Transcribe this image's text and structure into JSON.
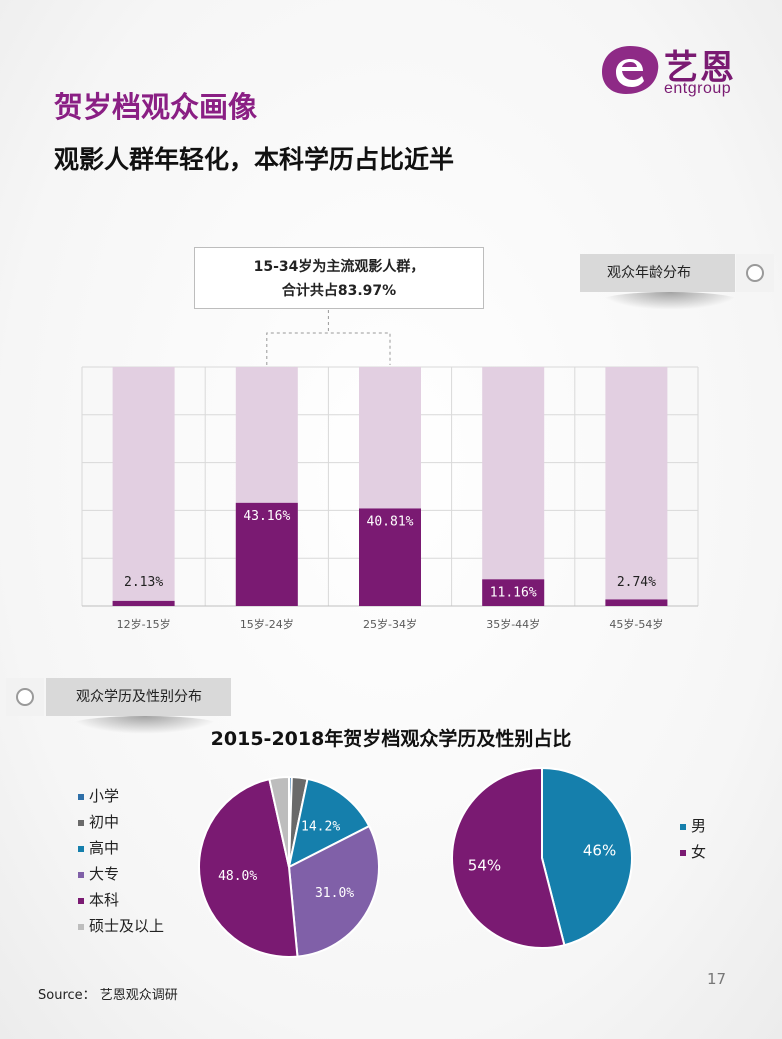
{
  "header": {
    "logo_cn": "艺恩",
    "logo_en": "entgroup",
    "title": "贺岁档观众画像",
    "subtitle": "观影人群年轻化，本科学历占比近半"
  },
  "callout": {
    "line1": "15-34岁为主流观影人群，",
    "line2": "合计共占83.97%"
  },
  "sections": {
    "age_tab": "观众年龄分布",
    "edu_tab": "观众学历及性别分布"
  },
  "colors": {
    "accent": "#8a1f84",
    "bar": "#7a1a72",
    "bar_bg": "#e2cfe1",
    "male": "#157fac"
  },
  "chart_data": [
    {
      "type": "bar",
      "categories": [
        "12岁-15岁",
        "15岁-24岁",
        "25岁-34岁",
        "35岁-44岁",
        "45岁-54岁"
      ],
      "values": [
        2.13,
        43.16,
        40.81,
        11.16,
        2.74
      ],
      "labels": [
        "2.13%",
        "43.16%",
        "40.81%",
        "11.16%",
        "2.74%"
      ],
      "ylim": [
        0,
        100
      ],
      "grid": true
    },
    {
      "type": "pie",
      "title": "2015-2018年贺岁档观众学历及性别占比",
      "categories": [
        "小学",
        "初中",
        "高中",
        "大专",
        "本科",
        "硕士及以上"
      ],
      "values": [
        0.5,
        2.8,
        14.2,
        31.0,
        48.0,
        3.5
      ],
      "labels": [
        "",
        "",
        "14.2%",
        "31.0%",
        "48.0%",
        ""
      ],
      "colors": [
        "#2e6fa8",
        "#6a6a6a",
        "#157fac",
        "#8060a8",
        "#7a1a72",
        "#bdbdbd"
      ],
      "legend": "left"
    },
    {
      "type": "pie",
      "categories": [
        "男",
        "女"
      ],
      "values": [
        46,
        54
      ],
      "labels": [
        "46%",
        "54%"
      ],
      "colors": [
        "#157fac",
        "#7a1a72"
      ],
      "legend": "right"
    }
  ],
  "footer": {
    "source": "Source： 艺恩观众调研",
    "page": "17"
  }
}
